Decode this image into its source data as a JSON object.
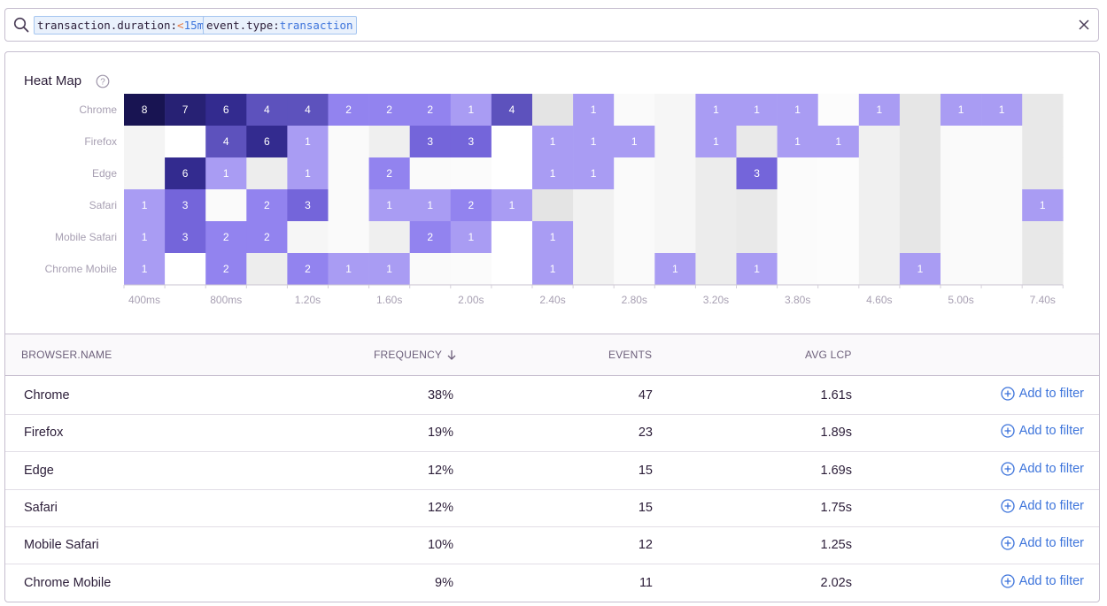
{
  "search": {
    "tokens": [
      {
        "key": "transaction.duration:",
        "op": "<",
        "value": "15m"
      },
      {
        "key": "event.type:",
        "op": "",
        "value": "transaction"
      }
    ],
    "icon": "search-icon",
    "clear_icon": "close-icon"
  },
  "heatmap": {
    "title": "Heat Map",
    "help_icon": "question-icon",
    "rows": [
      "Chrome",
      "Firefox",
      "Edge",
      "Safari",
      "Mobile Safari",
      "Chrome Mobile"
    ],
    "x_ticks": [
      "400ms",
      "800ms",
      "1.20s",
      "1.60s",
      "2.00s",
      "2.40s",
      "2.80s",
      "3.20s",
      "3.80s",
      "4.60s",
      "5.00s",
      "7.40s"
    ],
    "counts": [
      [
        8,
        7,
        6,
        4,
        4,
        2,
        2,
        2,
        1,
        4,
        0,
        1,
        0,
        0,
        1,
        1,
        1,
        0,
        1,
        0,
        1,
        1,
        0
      ],
      [
        0,
        0,
        4,
        6,
        1,
        0,
        0,
        3,
        3,
        0,
        1,
        1,
        1,
        0,
        1,
        0,
        1,
        1,
        0,
        0,
        0,
        0,
        0
      ],
      [
        0,
        6,
        1,
        0,
        1,
        0,
        2,
        0,
        0,
        0,
        1,
        1,
        0,
        0,
        0,
        3,
        0,
        0,
        0,
        0,
        0,
        0,
        0
      ],
      [
        1,
        3,
        0,
        2,
        3,
        0,
        1,
        1,
        2,
        1,
        0,
        0,
        0,
        0,
        0,
        0,
        0,
        0,
        0,
        0,
        0,
        0,
        1
      ],
      [
        1,
        3,
        2,
        2,
        0,
        0,
        0,
        2,
        1,
        0,
        1,
        0,
        0,
        0,
        0,
        0,
        0,
        0,
        0,
        0,
        0,
        0,
        0
      ],
      [
        1,
        0,
        2,
        0,
        2,
        1,
        1,
        0,
        0,
        0,
        1,
        0,
        0,
        1,
        0,
        1,
        0,
        0,
        0,
        1,
        0,
        0,
        0
      ]
    ],
    "colors": {
      "1": "#a99cf3",
      "2": "#9283ef",
      "3": "#7465da",
      "4": "#5d52bd",
      "6": "#332b8f",
      "7": "#272174",
      "8": "#181452"
    },
    "empty_column_shades": [
      "#f4f4f4",
      "#ffffff",
      "#fafafa",
      "#ededed",
      "#f6f6f6",
      "#fafafa",
      "#efefef",
      "#fafafa",
      "#fbfbfb",
      "#ffffff",
      "#e4e4e4",
      "#f1f1f1",
      "#fafafa",
      "#f6f6f6",
      "#ececec",
      "#e9e9e9",
      "#fbfbfb",
      "#fcfcfc",
      "#f0f0f0",
      "#e6e6e6",
      "#fafafa",
      "#fafafa",
      "#e8e8e8"
    ]
  },
  "table": {
    "headers": {
      "browser": "BROWSER.NAME",
      "frequency": "FREQUENCY",
      "events": "EVENTS",
      "avg_lcp": "AVG LCP"
    },
    "sort_icon": "arrow-down-icon",
    "rows": [
      {
        "browser": "Chrome",
        "frequency": "38%",
        "events": "47",
        "avg_lcp": "1.61s",
        "action": "Add to filter"
      },
      {
        "browser": "Firefox",
        "frequency": "19%",
        "events": "23",
        "avg_lcp": "1.89s",
        "action": "Add to filter"
      },
      {
        "browser": "Edge",
        "frequency": "12%",
        "events": "15",
        "avg_lcp": "1.69s",
        "action": "Add to filter"
      },
      {
        "browser": "Safari",
        "frequency": "12%",
        "events": "15",
        "avg_lcp": "1.75s",
        "action": "Add to filter"
      },
      {
        "browser": "Mobile Safari",
        "frequency": "10%",
        "events": "12",
        "avg_lcp": "1.25s",
        "action": "Add to filter"
      },
      {
        "browser": "Chrome Mobile",
        "frequency": "9%",
        "events": "11",
        "avg_lcp": "2.02s",
        "action": "Add to filter"
      }
    ]
  }
}
